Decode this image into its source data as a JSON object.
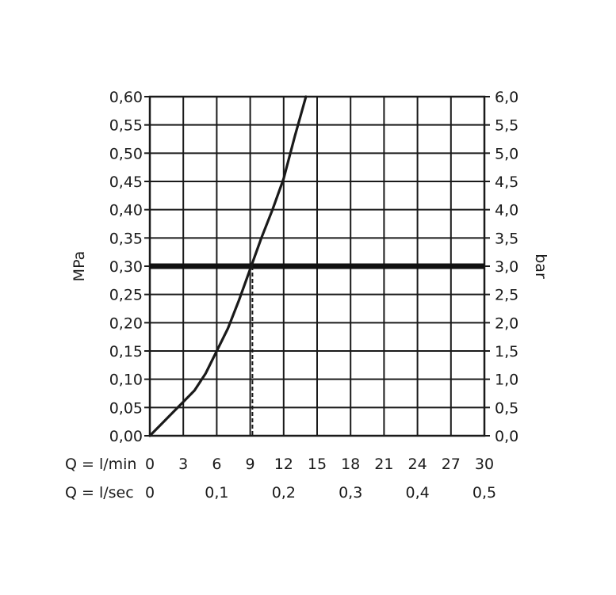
{
  "chart_data": {
    "type": "line",
    "title": "",
    "ylabel_left": "MPa",
    "ylabel_right": "bar",
    "x_row_labels": [
      "Q = l/min",
      "Q = l/sec"
    ],
    "xlim": [
      0,
      30
    ],
    "ylim": [
      0,
      0.6
    ],
    "x_ticks_lmin": [
      0,
      3,
      6,
      9,
      12,
      15,
      18,
      21,
      24,
      27,
      30
    ],
    "x_ticks_lmin_labels": [
      "0",
      "3",
      "6",
      "9",
      "12",
      "15",
      "18",
      "21",
      "24",
      "27",
      "30"
    ],
    "x_ticks_lsec": [
      0,
      6,
      12,
      18,
      24,
      30
    ],
    "x_ticks_lsec_labels": [
      "0",
      "0,1",
      "0,2",
      "0,3",
      "0,4",
      "0,5"
    ],
    "y_ticks_left": [
      0,
      0.05,
      0.1,
      0.15,
      0.2,
      0.25,
      0.3,
      0.35,
      0.4,
      0.45,
      0.5,
      0.55,
      0.6
    ],
    "y_ticks_left_labels": [
      "0,00",
      "0,05",
      "0,10",
      "0,15",
      "0,20",
      "0,25",
      "0,30",
      "0,35",
      "0,40",
      "0,45",
      "0,50",
      "0,55",
      "0,60"
    ],
    "y_ticks_right_labels": [
      "0,0",
      "0,5",
      "1,0",
      "1,5",
      "2,0",
      "2,5",
      "3,0",
      "3,5",
      "4,0",
      "4,5",
      "5,0",
      "5,5",
      "6,0"
    ],
    "grid": true,
    "series": [
      {
        "x": [
          0,
          1,
          2,
          3,
          4,
          5,
          6,
          7,
          8,
          9,
          10,
          11,
          12,
          13,
          14
        ],
        "y": [
          0,
          0.02,
          0.04,
          0.06,
          0.08,
          0.11,
          0.15,
          0.19,
          0.24,
          0.295,
          0.35,
          0.4,
          0.455,
          0.53,
          0.6
        ],
        "color": "#1a1a1a"
      }
    ],
    "reference_line": {
      "y": 0.3,
      "color": "#111111"
    },
    "operating_point": {
      "x": 9.2,
      "y": 0.3
    }
  }
}
